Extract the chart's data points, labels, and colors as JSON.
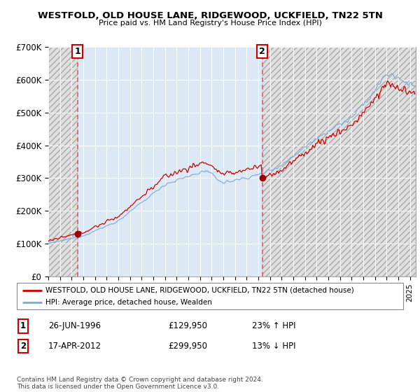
{
  "title": "WESTFOLD, OLD HOUSE LANE, RIDGEWOOD, UCKFIELD, TN22 5TN",
  "subtitle": "Price paid vs. HM Land Registry's House Price Index (HPI)",
  "legend_line1": "WESTFOLD, OLD HOUSE LANE, RIDGEWOOD, UCKFIELD, TN22 5TN (detached house)",
  "legend_line2": "HPI: Average price, detached house, Wealden",
  "footnote": "Contains HM Land Registry data © Crown copyright and database right 2024.\nThis data is licensed under the Open Government Licence v3.0.",
  "sale1_date": "26-JUN-1996",
  "sale1_price": 129950,
  "sale1_hpi": "23% ↑ HPI",
  "sale1_label": "1",
  "sale2_date": "17-APR-2012",
  "sale2_price": 299950,
  "sale2_hpi": "13% ↓ HPI",
  "sale2_label": "2",
  "hpi_color": "#7aaadd",
  "sale_color": "#cc0000",
  "marker_color": "#990000",
  "dashed_line_color": "#dd5555",
  "ylim": [
    0,
    700000
  ],
  "yticks": [
    0,
    100000,
    200000,
    300000,
    400000,
    500000,
    600000,
    700000
  ],
  "ytick_labels": [
    "£0",
    "£100K",
    "£200K",
    "£300K",
    "£400K",
    "£500K",
    "£600K",
    "£700K"
  ],
  "xlim_start": 1994.0,
  "xlim_end": 2025.5,
  "chart_bg": "#dde8f5",
  "hatch_bg": "#e8e8e8"
}
